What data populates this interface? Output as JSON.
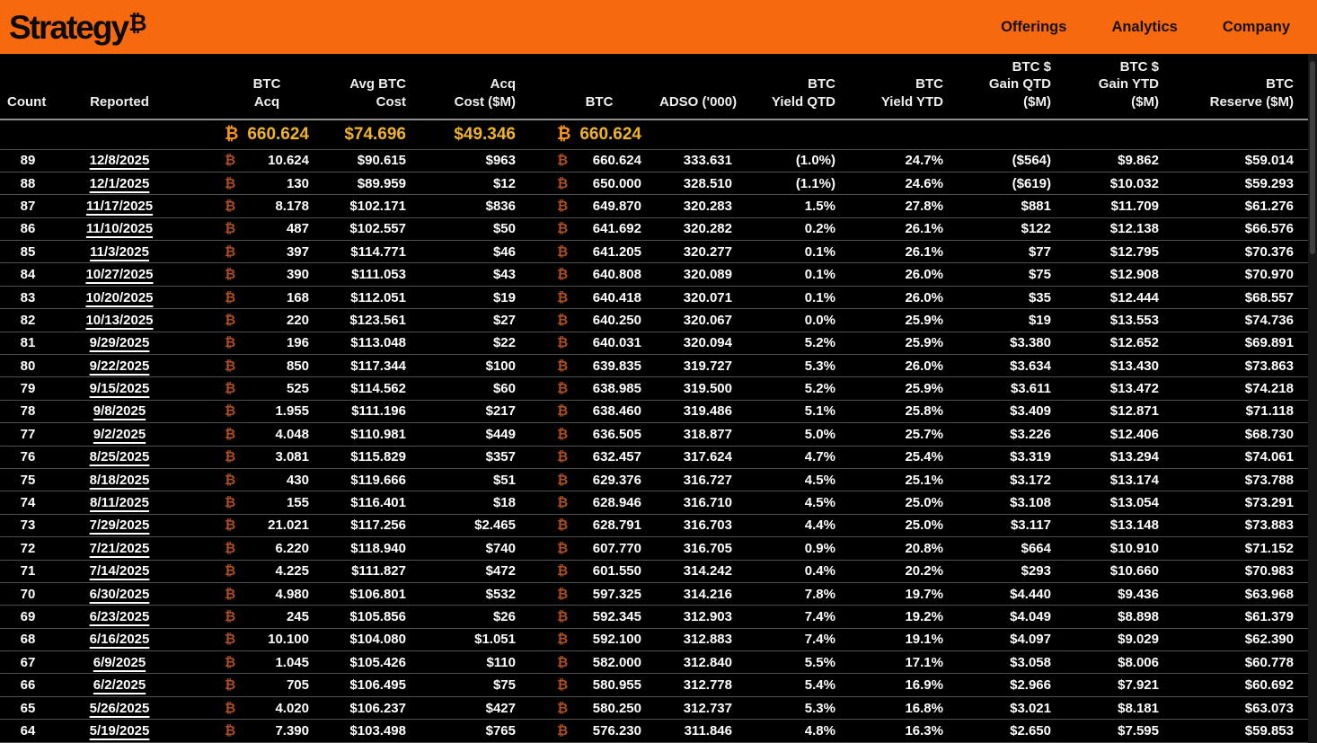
{
  "brand": {
    "name": "Strategy",
    "symbol": "₿"
  },
  "nav": {
    "items": [
      {
        "label": "Offerings"
      },
      {
        "label": "Analytics"
      },
      {
        "label": "Company"
      }
    ]
  },
  "btc_symbol": "₿",
  "colors": {
    "topbar_orange": "#F7690F",
    "summary_gold": "#F0B429",
    "summary_btc_orange": "#F7931A",
    "row_btc_orange": "#AC4E1F",
    "background": "#000000"
  },
  "table": {
    "columns": [
      {
        "id": "count",
        "lines": [
          "Count"
        ]
      },
      {
        "id": "reported",
        "lines": [
          "Reported"
        ]
      },
      {
        "id": "btc-acq",
        "lines": [
          "BTC",
          "Acq"
        ]
      },
      {
        "id": "avg-btc-cost",
        "lines": [
          "Avg BTC",
          "Cost"
        ]
      },
      {
        "id": "acq-cost-m",
        "lines": [
          "Acq",
          "Cost ($M)"
        ]
      },
      {
        "id": "btc",
        "lines": [
          "BTC"
        ]
      },
      {
        "id": "adso",
        "lines": [
          "ADSO ('000)"
        ]
      },
      {
        "id": "btc-yield-qtd",
        "lines": [
          "BTC",
          "Yield QTD"
        ]
      },
      {
        "id": "btc-yield-ytd",
        "lines": [
          "BTC",
          "Yield YTD"
        ]
      },
      {
        "id": "btc-gain-qtd",
        "lines": [
          "BTC $",
          "Gain QTD",
          "($M)"
        ]
      },
      {
        "id": "btc-gain-ytd",
        "lines": [
          "BTC $",
          "Gain YTD",
          "($M)"
        ]
      },
      {
        "id": "btc-reserve",
        "lines": [
          "BTC",
          "Reserve ($M)"
        ]
      }
    ],
    "summary": {
      "btc_acq": "660.624",
      "avg_btc_cost": "$74.696",
      "acq_cost_m": "$49.346",
      "btc": "660.624"
    },
    "rows": [
      [
        "89",
        "12/8/2025",
        "10.624",
        "$90.615",
        "$963",
        "660.624",
        "333.631",
        "(1.0%)",
        "24.7%",
        "($564)",
        "$9.862",
        "$59.014"
      ],
      [
        "88",
        "12/1/2025",
        "130",
        "$89.959",
        "$12",
        "650.000",
        "328.510",
        "(1.1%)",
        "24.6%",
        "($619)",
        "$10.032",
        "$59.293"
      ],
      [
        "87",
        "11/17/2025",
        "8.178",
        "$102.171",
        "$836",
        "649.870",
        "320.283",
        "1.5%",
        "27.8%",
        "$881",
        "$11.709",
        "$61.276"
      ],
      [
        "86",
        "11/10/2025",
        "487",
        "$102.557",
        "$50",
        "641.692",
        "320.282",
        "0.2%",
        "26.1%",
        "$122",
        "$12.138",
        "$66.576"
      ],
      [
        "85",
        "11/3/2025",
        "397",
        "$114.771",
        "$46",
        "641.205",
        "320.277",
        "0.1%",
        "26.1%",
        "$77",
        "$12.795",
        "$70.376"
      ],
      [
        "84",
        "10/27/2025",
        "390",
        "$111.053",
        "$43",
        "640.808",
        "320.089",
        "0.1%",
        "26.0%",
        "$75",
        "$12.908",
        "$70.970"
      ],
      [
        "83",
        "10/20/2025",
        "168",
        "$112.051",
        "$19",
        "640.418",
        "320.071",
        "0.1%",
        "26.0%",
        "$35",
        "$12.444",
        "$68.557"
      ],
      [
        "82",
        "10/13/2025",
        "220",
        "$123.561",
        "$27",
        "640.250",
        "320.067",
        "0.0%",
        "25.9%",
        "$19",
        "$13.553",
        "$74.736"
      ],
      [
        "81",
        "9/29/2025",
        "196",
        "$113.048",
        "$22",
        "640.031",
        "320.094",
        "5.2%",
        "25.9%",
        "$3.380",
        "$12.652",
        "$69.891"
      ],
      [
        "80",
        "9/22/2025",
        "850",
        "$117.344",
        "$100",
        "639.835",
        "319.727",
        "5.3%",
        "26.0%",
        "$3.634",
        "$13.430",
        "$73.863"
      ],
      [
        "79",
        "9/15/2025",
        "525",
        "$114.562",
        "$60",
        "638.985",
        "319.500",
        "5.2%",
        "25.9%",
        "$3.611",
        "$13.472",
        "$74.218"
      ],
      [
        "78",
        "9/8/2025",
        "1.955",
        "$111.196",
        "$217",
        "638.460",
        "319.486",
        "5.1%",
        "25.8%",
        "$3.409",
        "$12.871",
        "$71.118"
      ],
      [
        "77",
        "9/2/2025",
        "4.048",
        "$110.981",
        "$449",
        "636.505",
        "318.877",
        "5.0%",
        "25.7%",
        "$3.226",
        "$12.406",
        "$68.730"
      ],
      [
        "76",
        "8/25/2025",
        "3.081",
        "$115.829",
        "$357",
        "632.457",
        "317.624",
        "4.7%",
        "25.4%",
        "$3.319",
        "$13.294",
        "$74.061"
      ],
      [
        "75",
        "8/18/2025",
        "430",
        "$119.666",
        "$51",
        "629.376",
        "316.727",
        "4.5%",
        "25.1%",
        "$3.172",
        "$13.174",
        "$73.788"
      ],
      [
        "74",
        "8/11/2025",
        "155",
        "$116.401",
        "$18",
        "628.946",
        "316.710",
        "4.5%",
        "25.0%",
        "$3.108",
        "$13.054",
        "$73.291"
      ],
      [
        "73",
        "7/29/2025",
        "21.021",
        "$117.256",
        "$2.465",
        "628.791",
        "316.703",
        "4.4%",
        "25.0%",
        "$3.117",
        "$13.148",
        "$73.883"
      ],
      [
        "72",
        "7/21/2025",
        "6.220",
        "$118.940",
        "$740",
        "607.770",
        "316.705",
        "0.9%",
        "20.8%",
        "$664",
        "$10.910",
        "$71.152"
      ],
      [
        "71",
        "7/14/2025",
        "4.225",
        "$111.827",
        "$472",
        "601.550",
        "314.242",
        "0.4%",
        "20.2%",
        "$293",
        "$10.660",
        "$70.983"
      ],
      [
        "70",
        "6/30/2025",
        "4.980",
        "$106.801",
        "$532",
        "597.325",
        "314.216",
        "7.8%",
        "19.7%",
        "$4.440",
        "$9.436",
        "$63.968"
      ],
      [
        "69",
        "6/23/2025",
        "245",
        "$105.856",
        "$26",
        "592.345",
        "312.903",
        "7.4%",
        "19.2%",
        "$4.049",
        "$8.898",
        "$61.379"
      ],
      [
        "68",
        "6/16/2025",
        "10.100",
        "$104.080",
        "$1.051",
        "592.100",
        "312.883",
        "7.4%",
        "19.1%",
        "$4.097",
        "$9.029",
        "$62.390"
      ],
      [
        "67",
        "6/9/2025",
        "1.045",
        "$105.426",
        "$110",
        "582.000",
        "312.840",
        "5.5%",
        "17.1%",
        "$3.058",
        "$8.006",
        "$60.778"
      ],
      [
        "66",
        "6/2/2025",
        "705",
        "$106.495",
        "$75",
        "580.955",
        "312.778",
        "5.4%",
        "16.9%",
        "$2.966",
        "$7.921",
        "$60.692"
      ],
      [
        "65",
        "5/26/2025",
        "4.020",
        "$106.237",
        "$427",
        "580.250",
        "312.737",
        "5.3%",
        "16.8%",
        "$3.021",
        "$8.181",
        "$63.073"
      ],
      [
        "64",
        "5/19/2025",
        "7.390",
        "$103.498",
        "$765",
        "576.230",
        "311.846",
        "4.8%",
        "16.3%",
        "$2.650",
        "$7.595",
        "$59.853"
      ]
    ]
  }
}
